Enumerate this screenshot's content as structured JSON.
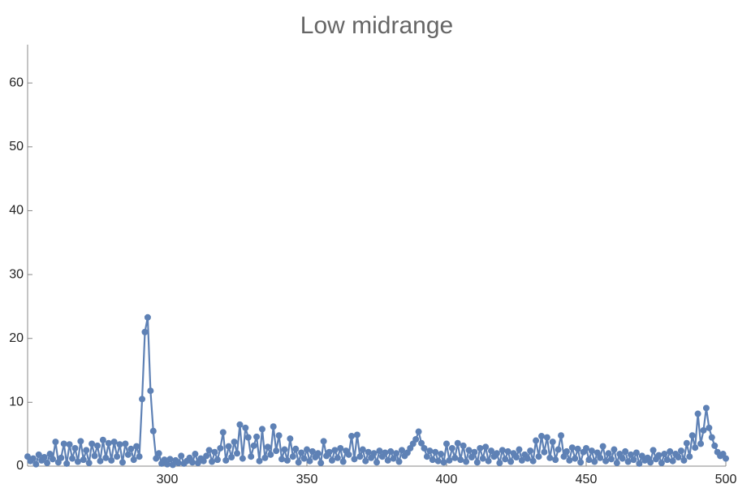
{
  "chart_data": {
    "type": "line",
    "title": "Low midrange",
    "xlim": [
      250,
      500
    ],
    "ylim": [
      0,
      66
    ],
    "xticks": [
      300,
      350,
      400,
      450,
      500
    ],
    "yticks": [
      0,
      10,
      20,
      30,
      40,
      50,
      60
    ],
    "series": [
      {
        "color": "#5e81b5",
        "x": [
          250,
          251,
          252,
          253,
          254,
          255,
          256,
          257,
          258,
          259,
          260,
          261,
          262,
          263,
          264,
          265,
          266,
          267,
          268,
          269,
          270,
          271,
          272,
          273,
          274,
          275,
          276,
          277,
          278,
          279,
          280,
          281,
          282,
          283,
          284,
          285,
          286,
          287,
          288,
          289,
          290,
          291,
          292,
          293,
          294,
          295,
          296,
          297,
          298,
          299,
          300,
          301,
          302,
          303,
          304,
          305,
          306,
          307,
          308,
          309,
          310,
          311,
          312,
          313,
          314,
          315,
          316,
          317,
          318,
          319,
          320,
          321,
          322,
          323,
          324,
          325,
          326,
          327,
          328,
          329,
          330,
          331,
          332,
          333,
          334,
          335,
          336,
          337,
          338,
          339,
          340,
          341,
          342,
          343,
          344,
          345,
          346,
          347,
          348,
          349,
          350,
          351,
          352,
          353,
          354,
          355,
          356,
          357,
          358,
          359,
          360,
          361,
          362,
          363,
          364,
          365,
          366,
          367,
          368,
          369,
          370,
          371,
          372,
          373,
          374,
          375,
          376,
          377,
          378,
          379,
          380,
          381,
          382,
          383,
          384,
          385,
          386,
          387,
          388,
          389,
          390,
          391,
          392,
          393,
          394,
          395,
          396,
          397,
          398,
          399,
          400,
          401,
          402,
          403,
          404,
          405,
          406,
          407,
          408,
          409,
          410,
          411,
          412,
          413,
          414,
          415,
          416,
          417,
          418,
          419,
          420,
          421,
          422,
          423,
          424,
          425,
          426,
          427,
          428,
          429,
          430,
          431,
          432,
          433,
          434,
          435,
          436,
          437,
          438,
          439,
          440,
          441,
          442,
          443,
          444,
          445,
          446,
          447,
          448,
          449,
          450,
          451,
          452,
          453,
          454,
          455,
          456,
          457,
          458,
          459,
          460,
          461,
          462,
          463,
          464,
          465,
          466,
          467,
          468,
          469,
          470,
          471,
          472,
          473,
          474,
          475,
          476,
          477,
          478,
          479,
          480,
          481,
          482,
          483,
          484,
          485,
          486,
          487,
          488,
          489,
          490,
          491,
          492,
          493,
          494,
          495,
          496,
          497,
          498,
          499,
          500
        ],
        "values": [
          1.5,
          0.8,
          1.2,
          0.3,
          1.8,
          0.9,
          1.4,
          0.5,
          1.9,
          1.1,
          3.8,
          0.6,
          1.3,
          3.5,
          0.4,
          3.4,
          1.2,
          2.8,
          0.7,
          3.9,
          1.0,
          2.5,
          0.5,
          3.5,
          1.6,
          3.2,
          0.8,
          4.1,
          1.3,
          3.6,
          0.9,
          3.8,
          1.5,
          3.4,
          0.6,
          3.5,
          1.8,
          2.7,
          1.0,
          3.1,
          1.5,
          10.5,
          21.0,
          23.3,
          11.8,
          5.5,
          1.2,
          2.0,
          0.4,
          1.0,
          0.3,
          1.1,
          0.2,
          0.9,
          0.5,
          1.6,
          0.4,
          0.8,
          1.3,
          0.6,
          1.9,
          0.5,
          1.2,
          0.8,
          1.6,
          2.5,
          0.7,
          2.2,
          1.0,
          2.8,
          5.3,
          0.9,
          3.1,
          1.4,
          3.8,
          2.0,
          6.5,
          1.2,
          6.0,
          4.5,
          1.5,
          3.2,
          4.6,
          0.8,
          5.8,
          1.3,
          3.0,
          1.8,
          6.2,
          2.4,
          4.8,
          1.1,
          2.6,
          0.9,
          4.3,
          1.5,
          2.7,
          0.6,
          2.1,
          1.2,
          2.6,
          0.8,
          2.3,
          1.4,
          2.0,
          0.5,
          3.9,
          1.6,
          2.2,
          0.9,
          2.5,
          1.3,
          2.8,
          0.7,
          2.4,
          1.8,
          4.7,
          1.1,
          4.9,
          1.5,
          2.6,
          0.8,
          2.2,
          1.3,
          2.0,
          0.6,
          2.4,
          1.5,
          2.1,
          0.9,
          2.3,
          1.2,
          2.0,
          0.7,
          2.5,
          1.6,
          2.1,
          2.8,
          3.5,
          4.2,
          5.4,
          3.6,
          2.8,
          1.5,
          2.4,
          1.0,
          2.2,
          0.8,
          1.9,
          0.6,
          3.5,
          0.9,
          2.8,
          1.3,
          3.6,
          1.0,
          3.2,
          0.7,
          2.5,
          1.4,
          2.2,
          0.6,
          2.8,
          1.2,
          3.0,
          0.8,
          2.4,
          1.5,
          2.0,
          0.5,
          2.5,
          1.1,
          2.3,
          0.7,
          2.0,
          1.4,
          2.6,
          0.9,
          1.8,
          1.2,
          2.4,
          0.8,
          4.0,
          1.5,
          4.7,
          2.2,
          4.5,
          1.3,
          3.8,
          1.0,
          2.6,
          4.8,
          1.5,
          2.3,
          0.9,
          2.9,
          1.2,
          2.7,
          0.6,
          2.2,
          2.8,
          1.0,
          2.4,
          0.7,
          2.1,
          1.3,
          3.1,
          0.8,
          2.0,
          1.1,
          2.6,
          0.5,
          1.9,
          1.2,
          2.3,
          0.7,
          1.8,
          1.0,
          2.1,
          0.4,
          1.6,
          0.9,
          1.3,
          0.6,
          2.5,
          1.1,
          1.7,
          0.5,
          1.9,
          1.0,
          2.3,
          0.8,
          1.9,
          1.4,
          2.4,
          0.9,
          3.6,
          1.5,
          4.8,
          2.9,
          8.2,
          3.5,
          5.6,
          9.1,
          6.0,
          4.5,
          3.2,
          2.2,
          1.6,
          1.9,
          1.2
        ]
      }
    ]
  }
}
